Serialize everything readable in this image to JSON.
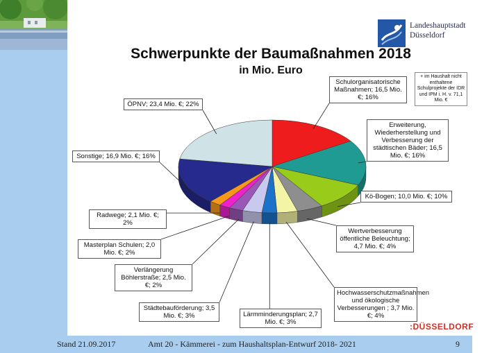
{
  "header": {
    "city_line1": "Landeshauptstadt",
    "city_line2": "Düsseldorf"
  },
  "footer": {
    "date": "Stand 21.09.2017",
    "center": "Amt 20 - Kämmerei - zum Haushaltsplan-Entwurf 2018- 2021",
    "page": "9",
    "brand_prefix": ":",
    "brand": "DÜSSELDORF"
  },
  "note": "+ im Haushalt nicht enthaltene Schulprojekte der IDR und IPM i. H. v. 71,1 Mio. €",
  "chart_data": {
    "type": "pie",
    "title": "Schwerpunkte der Baumaßnahmen 2018",
    "subtitle": "in Mio. Euro",
    "unit": "Mio. €",
    "slices": [
      {
        "name": "Schulorganisatorische Maßnahmen",
        "value": 16.5,
        "percent": 16,
        "color": "#ee1c1c",
        "label": "Schulorganisatorische Maßnahmen; 16,5 Mio. €; 16%"
      },
      {
        "name": "Erweiterung, Wiederherstellung und Verbesserung der städtischen Bäder",
        "value": 16.5,
        "percent": 16,
        "color": "#1f9b93",
        "label": "Erweiterung, Wiederherstellung und Verbesserung der städtischen Bäder; 16,5 Mio. €; 16%"
      },
      {
        "name": "Kö-Bogen",
        "value": 10.0,
        "percent": 10,
        "color": "#99cc1a",
        "label": "Kö-Bogen; 10,0 Mio. €; 10%"
      },
      {
        "name": "Wertverbesserung öffentliche Beleuchtung",
        "value": 4.7,
        "percent": 4,
        "color": "#8e8e8e",
        "label": "Wertverbesserung öffentliche Beleuchtung; 4,7 Mio. €; 4%"
      },
      {
        "name": "Hochwasserschutzmaßnahmen und ökologische Verbesserungen",
        "value": 3.7,
        "percent": 4,
        "color": "#f4f4a6",
        "label": "Hochwasserschutzmaßnahmen und ökologische Verbesserungen ; 3,7 Mio. €; 4%"
      },
      {
        "name": "Lärmminderungsplan",
        "value": 2.7,
        "percent": 3,
        "color": "#1b72c8",
        "label": "Lärmminderungsplan; 2,7 Mio. €; 3%"
      },
      {
        "name": "Städtebauförderung",
        "value": 3.5,
        "percent": 3,
        "color": "#c9c9ef",
        "label": "Städtebauförderung; 3,5 Mio. €; 3%"
      },
      {
        "name": "Verlängerung Böhlerstraße",
        "value": 2.5,
        "percent": 2,
        "color": "#9a57b8",
        "label": "Verlängerung Böhlerstraße; 2,5 Mio. €; 2%"
      },
      {
        "name": "Masterplan Schulen",
        "value": 2.0,
        "percent": 2,
        "color": "#ee22cc",
        "label": "Masterplan Schulen; 2,0 Mio. €; 2%"
      },
      {
        "name": "Radwege",
        "value": 2.1,
        "percent": 2,
        "color": "#f79a1c",
        "label": "Radwege; 2,1 Mio. €; 2%"
      },
      {
        "name": "Sonstige",
        "value": 16.9,
        "percent": 16,
        "color": "#262a8c",
        "label": "Sonstige; 16,9 Mio. €; 16%"
      },
      {
        "name": "ÖPNV",
        "value": 23.4,
        "percent": 22,
        "color": "#cfe3e6",
        "label": "ÖPNV; 23,4 Mio. €; 22%"
      }
    ],
    "legend": "none"
  }
}
